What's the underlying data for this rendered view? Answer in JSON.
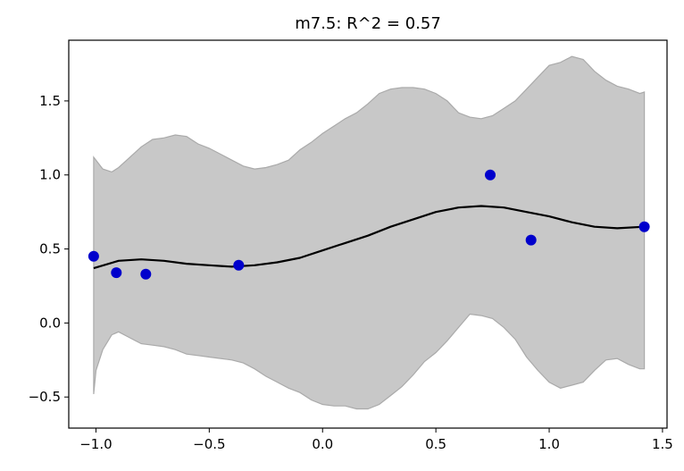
{
  "chart_data": {
    "type": "line",
    "title": "m7.5: R^2 = 0.57",
    "xlabel": "",
    "ylabel": "",
    "xlim": [
      -1.12,
      1.52
    ],
    "ylim": [
      -0.71,
      1.91
    ],
    "x_ticks": [
      -1.0,
      -0.5,
      0.0,
      0.5,
      1.0,
      1.5
    ],
    "x_tick_labels": [
      "−1.0",
      "−0.5",
      "0.0",
      "0.5",
      "1.0",
      "1.5"
    ],
    "y_ticks": [
      -0.5,
      0.0,
      0.5,
      1.0,
      1.5
    ],
    "y_tick_labels": [
      "−0.5",
      "0.0",
      "0.5",
      "1.0",
      "1.5"
    ],
    "grid": false,
    "colors": {
      "points": "#0000cc",
      "line": "#000000",
      "band": "#c8c8c8"
    },
    "points": {
      "x": [
        -1.01,
        -0.91,
        -0.78,
        -0.37,
        0.74,
        0.92,
        1.42
      ],
      "y": [
        0.45,
        0.34,
        0.33,
        0.39,
        1.0,
        0.56,
        0.65
      ]
    },
    "mean_line": {
      "x": [
        -1.01,
        -0.9,
        -0.8,
        -0.7,
        -0.6,
        -0.5,
        -0.4,
        -0.3,
        -0.2,
        -0.1,
        0.0,
        0.1,
        0.2,
        0.3,
        0.4,
        0.5,
        0.6,
        0.7,
        0.8,
        0.9,
        1.0,
        1.1,
        1.2,
        1.3,
        1.42
      ],
      "y": [
        0.37,
        0.42,
        0.43,
        0.42,
        0.4,
        0.39,
        0.38,
        0.39,
        0.41,
        0.44,
        0.49,
        0.54,
        0.59,
        0.65,
        0.7,
        0.75,
        0.78,
        0.79,
        0.78,
        0.75,
        0.72,
        0.68,
        0.65,
        0.64,
        0.65
      ]
    },
    "band": {
      "x": [
        -1.01,
        -1.0,
        -0.97,
        -0.93,
        -0.9,
        -0.85,
        -0.8,
        -0.75,
        -0.7,
        -0.65,
        -0.6,
        -0.55,
        -0.5,
        -0.45,
        -0.4,
        -0.35,
        -0.3,
        -0.25,
        -0.2,
        -0.15,
        -0.1,
        -0.05,
        0.0,
        0.05,
        0.1,
        0.15,
        0.2,
        0.25,
        0.3,
        0.35,
        0.4,
        0.45,
        0.5,
        0.55,
        0.6,
        0.65,
        0.7,
        0.75,
        0.8,
        0.85,
        0.9,
        0.95,
        1.0,
        1.05,
        1.1,
        1.15,
        1.2,
        1.25,
        1.3,
        1.35,
        1.4,
        1.42
      ],
      "upper": [
        1.12,
        1.1,
        1.04,
        1.02,
        1.05,
        1.12,
        1.19,
        1.24,
        1.25,
        1.27,
        1.26,
        1.21,
        1.18,
        1.14,
        1.1,
        1.06,
        1.04,
        1.05,
        1.07,
        1.1,
        1.17,
        1.22,
        1.28,
        1.33,
        1.38,
        1.42,
        1.48,
        1.55,
        1.58,
        1.59,
        1.59,
        1.58,
        1.55,
        1.5,
        1.42,
        1.39,
        1.38,
        1.4,
        1.45,
        1.5,
        1.58,
        1.66,
        1.74,
        1.76,
        1.8,
        1.78,
        1.7,
        1.64,
        1.6,
        1.58,
        1.55,
        1.56
      ],
      "lower": [
        -0.48,
        -0.32,
        -0.18,
        -0.08,
        -0.06,
        -0.1,
        -0.14,
        -0.15,
        -0.16,
        -0.18,
        -0.21,
        -0.22,
        -0.23,
        -0.24,
        -0.25,
        -0.27,
        -0.31,
        -0.36,
        -0.4,
        -0.44,
        -0.47,
        -0.52,
        -0.55,
        -0.56,
        -0.56,
        -0.58,
        -0.58,
        -0.55,
        -0.49,
        -0.43,
        -0.35,
        -0.26,
        -0.2,
        -0.12,
        -0.03,
        0.06,
        0.05,
        0.03,
        -0.03,
        -0.11,
        -0.23,
        -0.32,
        -0.4,
        -0.44,
        -0.42,
        -0.4,
        -0.32,
        -0.25,
        -0.24,
        -0.28,
        -0.31,
        -0.31
      ]
    }
  }
}
